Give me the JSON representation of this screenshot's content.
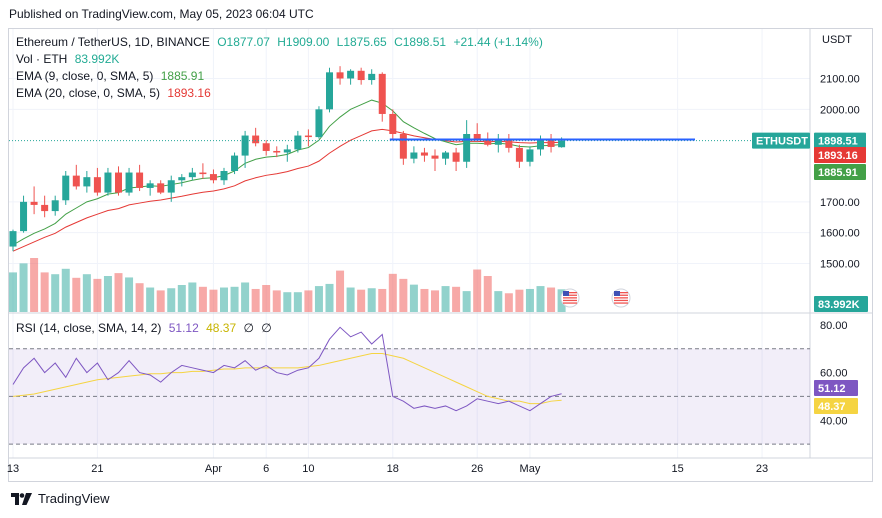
{
  "published": "Published on TradingView.com, May 05, 2023 06:04 UTC",
  "branding": "TradingView",
  "currency": "USDT",
  "legend": {
    "symbol": "Ethereum / TetherUS, 1D, BINANCE",
    "open": "O1877.07",
    "high": "H1909.00",
    "low": "L1875.65",
    "close": "C1898.51",
    "change": "+21.44 (+1.14%)",
    "volume_label": "Vol · ETH",
    "volume_value": "83.992K",
    "ema9_label": "EMA (9, close, 0, SMA, 5)",
    "ema9_value": "1885.91",
    "ema20_label": "EMA (20, close, 0, SMA, 5)",
    "ema20_value": "1893.16",
    "rsi_label": "RSI (14, close, SMA, 14, 2)",
    "rsi_value": "51.12",
    "rsi_ma_value": "48.37",
    "rsi_extra1": "∅",
    "rsi_extra2": "∅"
  },
  "tags": {
    "symbol": "ETHUSDT",
    "price": "1898.51",
    "ema20": "1893.16",
    "ema9": "1885.91",
    "volume": "83.992K",
    "rsi": "51.12",
    "rsi_ma": "48.37"
  },
  "colors": {
    "up": "#26a69a",
    "down": "#ef5350",
    "ema9": "#43a047",
    "ema20": "#e53935",
    "rsi": "#7e57c2",
    "rsi_ma": "#f5d442",
    "hline": "#2962ff"
  },
  "chart_data": {
    "type": "candlestick",
    "title": "Ethereum / TetherUS, 1D, BINANCE",
    "price_axis": {
      "ticks": [
        1500,
        1600,
        1700,
        2000,
        2100
      ],
      "tick_labels": [
        "1500.00",
        "1600.00",
        "1700.00",
        "2000.00",
        "2100.00"
      ],
      "range": [
        1440,
        2160
      ]
    },
    "x_ticks": [
      {
        "label": "13",
        "index": 0
      },
      {
        "label": "21",
        "index": 8
      },
      {
        "label": "Apr",
        "index": 19
      },
      {
        "label": "6",
        "index": 24
      },
      {
        "label": "10",
        "index": 28
      },
      {
        "label": "18",
        "index": 36
      },
      {
        "label": "26",
        "index": 44
      },
      {
        "label": "May",
        "index": 49
      },
      {
        "label": "15",
        "index": 63
      },
      {
        "label": "23",
        "index": 71
      }
    ],
    "candles": [
      {
        "o": 1555,
        "h": 1610,
        "l": 1540,
        "c": 1605
      },
      {
        "o": 1605,
        "h": 1720,
        "l": 1600,
        "c": 1700
      },
      {
        "o": 1700,
        "h": 1750,
        "l": 1660,
        "c": 1690
      },
      {
        "o": 1690,
        "h": 1720,
        "l": 1650,
        "c": 1670
      },
      {
        "o": 1670,
        "h": 1720,
        "l": 1655,
        "c": 1705
      },
      {
        "o": 1705,
        "h": 1800,
        "l": 1690,
        "c": 1785
      },
      {
        "o": 1785,
        "h": 1820,
        "l": 1740,
        "c": 1750
      },
      {
        "o": 1750,
        "h": 1800,
        "l": 1730,
        "c": 1780
      },
      {
        "o": 1780,
        "h": 1810,
        "l": 1720,
        "c": 1730
      },
      {
        "o": 1730,
        "h": 1810,
        "l": 1720,
        "c": 1795
      },
      {
        "o": 1795,
        "h": 1815,
        "l": 1720,
        "c": 1730
      },
      {
        "o": 1730,
        "h": 1810,
        "l": 1720,
        "c": 1795
      },
      {
        "o": 1795,
        "h": 1820,
        "l": 1735,
        "c": 1745
      },
      {
        "o": 1745,
        "h": 1770,
        "l": 1720,
        "c": 1760
      },
      {
        "o": 1760,
        "h": 1770,
        "l": 1725,
        "c": 1730
      },
      {
        "o": 1730,
        "h": 1785,
        "l": 1700,
        "c": 1770
      },
      {
        "o": 1770,
        "h": 1790,
        "l": 1750,
        "c": 1780
      },
      {
        "o": 1780,
        "h": 1810,
        "l": 1770,
        "c": 1795
      },
      {
        "o": 1795,
        "h": 1825,
        "l": 1775,
        "c": 1790
      },
      {
        "o": 1790,
        "h": 1805,
        "l": 1760,
        "c": 1770
      },
      {
        "o": 1770,
        "h": 1810,
        "l": 1755,
        "c": 1800
      },
      {
        "o": 1800,
        "h": 1860,
        "l": 1790,
        "c": 1850
      },
      {
        "o": 1850,
        "h": 1930,
        "l": 1810,
        "c": 1915
      },
      {
        "o": 1915,
        "h": 1940,
        "l": 1880,
        "c": 1890
      },
      {
        "o": 1890,
        "h": 1900,
        "l": 1850,
        "c": 1865
      },
      {
        "o": 1865,
        "h": 1880,
        "l": 1845,
        "c": 1860
      },
      {
        "o": 1860,
        "h": 1885,
        "l": 1830,
        "c": 1870
      },
      {
        "o": 1870,
        "h": 1930,
        "l": 1860,
        "c": 1915
      },
      {
        "o": 1915,
        "h": 1935,
        "l": 1880,
        "c": 1910
      },
      {
        "o": 1910,
        "h": 2010,
        "l": 1905,
        "c": 2000
      },
      {
        "o": 2000,
        "h": 2135,
        "l": 1990,
        "c": 2120
      },
      {
        "o": 2120,
        "h": 2140,
        "l": 2080,
        "c": 2100
      },
      {
        "o": 2100,
        "h": 2130,
        "l": 2080,
        "c": 2125
      },
      {
        "o": 2125,
        "h": 2135,
        "l": 2080,
        "c": 2095
      },
      {
        "o": 2095,
        "h": 2130,
        "l": 2080,
        "c": 2115
      },
      {
        "o": 2115,
        "h": 2120,
        "l": 1960,
        "c": 1985
      },
      {
        "o": 1985,
        "h": 2000,
        "l": 1900,
        "c": 1920
      },
      {
        "o": 1920,
        "h": 1930,
        "l": 1820,
        "c": 1840
      },
      {
        "o": 1840,
        "h": 1880,
        "l": 1825,
        "c": 1860
      },
      {
        "o": 1860,
        "h": 1875,
        "l": 1830,
        "c": 1850
      },
      {
        "o": 1850,
        "h": 1870,
        "l": 1800,
        "c": 1840
      },
      {
        "o": 1840,
        "h": 1865,
        "l": 1820,
        "c": 1860
      },
      {
        "o": 1860,
        "h": 1875,
        "l": 1800,
        "c": 1830
      },
      {
        "o": 1830,
        "h": 1965,
        "l": 1810,
        "c": 1920
      },
      {
        "o": 1920,
        "h": 1955,
        "l": 1900,
        "c": 1900
      },
      {
        "o": 1900,
        "h": 1925,
        "l": 1880,
        "c": 1885
      },
      {
        "o": 1885,
        "h": 1920,
        "l": 1860,
        "c": 1905
      },
      {
        "o": 1905,
        "h": 1920,
        "l": 1860,
        "c": 1875
      },
      {
        "o": 1875,
        "h": 1885,
        "l": 1810,
        "c": 1830
      },
      {
        "o": 1830,
        "h": 1880,
        "l": 1815,
        "c": 1870
      },
      {
        "o": 1870,
        "h": 1915,
        "l": 1850,
        "c": 1900
      },
      {
        "o": 1900,
        "h": 1920,
        "l": 1860,
        "c": 1878
      },
      {
        "o": 1877.07,
        "h": 1909,
        "l": 1875.65,
        "c": 1898.51
      }
    ],
    "ema9": [
      1560,
      1580,
      1598,
      1612,
      1630,
      1660,
      1680,
      1700,
      1710,
      1725,
      1730,
      1745,
      1748,
      1752,
      1750,
      1756,
      1762,
      1770,
      1776,
      1778,
      1785,
      1800,
      1825,
      1838,
      1845,
      1848,
      1854,
      1868,
      1876,
      1900,
      1945,
      1975,
      2000,
      2015,
      2030,
      2020,
      1995,
      1960,
      1940,
      1922,
      1905,
      1895,
      1885,
      1890,
      1890,
      1888,
      1890,
      1887,
      1880,
      1878,
      1882,
      1883,
      1885.91
    ],
    "ema20": [
      1540,
      1555,
      1570,
      1585,
      1598,
      1618,
      1633,
      1648,
      1660,
      1672,
      1678,
      1690,
      1696,
      1702,
      1706,
      1712,
      1718,
      1725,
      1731,
      1735,
      1742,
      1752,
      1768,
      1778,
      1786,
      1791,
      1798,
      1808,
      1816,
      1832,
      1858,
      1880,
      1900,
      1915,
      1930,
      1935,
      1930,
      1922,
      1914,
      1908,
      1902,
      1898,
      1894,
      1896,
      1896,
      1895,
      1896,
      1895,
      1892,
      1891,
      1892,
      1892,
      1893.16
    ],
    "volume": [
      110,
      135,
      150,
      110,
      105,
      120,
      95,
      105,
      92,
      100,
      108,
      96,
      80,
      68,
      60,
      66,
      75,
      82,
      70,
      62,
      68,
      70,
      82,
      64,
      75,
      60,
      55,
      55,
      60,
      72,
      78,
      115,
      68,
      62,
      66,
      64,
      106,
      92,
      76,
      64,
      60,
      72,
      70,
      58,
      118,
      100,
      58,
      52,
      62,
      64,
      72,
      68,
      63
    ],
    "volume_axis_label": "83.992K",
    "rsi": [
      55,
      62,
      66,
      60,
      64,
      58,
      66,
      60,
      64,
      57,
      60,
      65,
      60,
      59,
      56,
      60,
      63,
      62,
      61,
      60,
      63,
      62,
      65,
      61,
      63,
      60,
      59,
      61,
      62,
      66,
      74,
      79,
      75,
      77,
      72,
      76,
      50,
      48,
      45,
      46,
      45,
      46,
      44,
      46,
      49,
      48,
      47,
      48,
      46,
      44,
      47,
      50,
      51.12
    ],
    "rsi_ma": [
      50,
      50.5,
      51,
      52,
      53,
      54,
      55,
      56,
      57,
      57.5,
      58,
      58.5,
      59,
      59.5,
      59.5,
      60,
      60,
      60.5,
      60.5,
      61,
      61.5,
      61.5,
      62,
      62,
      62,
      62,
      62,
      62,
      62.5,
      63,
      64,
      65,
      66,
      67,
      68,
      68,
      67,
      66,
      64,
      62,
      60,
      58,
      56,
      54,
      52,
      50,
      49,
      48,
      48,
      47,
      47,
      48,
      48.37
    ],
    "rsi_axis": {
      "range": [
        25,
        85
      ],
      "ticks": [
        40,
        60,
        80
      ],
      "tick_labels": [
        "40.00",
        "60.00",
        "80.00"
      ],
      "band": [
        30,
        70
      ]
    }
  }
}
